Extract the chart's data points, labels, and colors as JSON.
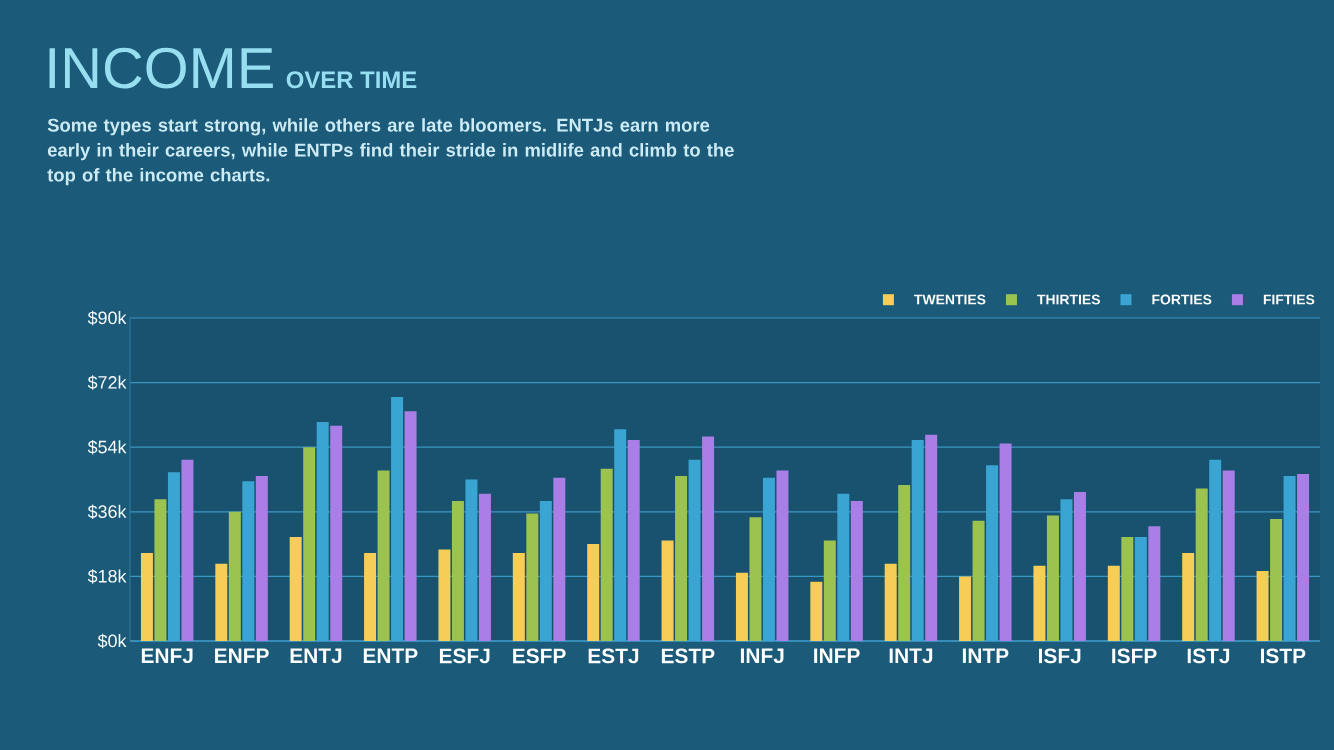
{
  "chart_data": {
    "type": "bar",
    "title": "INCOME",
    "subtitle": "OVER TIME",
    "annotations": [
      "Some types start strong, while others are late bloomers. ENTJs earn more early in their careers, while ENTPs find their stride in midlife and climb to the top of the income charts."
    ],
    "categories": [
      "ENFJ",
      "ENFP",
      "ENTJ",
      "ENTP",
      "ESFJ",
      "ESFP",
      "ESTJ",
      "ESTP",
      "INFJ",
      "INFP",
      "INTJ",
      "INTP",
      "ISFJ",
      "ISFP",
      "ISTJ",
      "ISTP"
    ],
    "series": [
      {
        "name": "TWENTIES",
        "color": "#f5cd57",
        "values": [
          24.5,
          21.5,
          29,
          24.5,
          25.5,
          24.5,
          27,
          28,
          19,
          16.5,
          21.5,
          18,
          21,
          21,
          24.5,
          19.5
        ]
      },
      {
        "name": "THIRTIES",
        "color": "#9cc34f",
        "values": [
          39.5,
          36,
          54,
          47.5,
          39,
          35.5,
          48,
          46,
          34.5,
          28,
          43.5,
          33.5,
          35,
          29,
          42.5,
          34
        ]
      },
      {
        "name": "FORTIES",
        "color": "#3aa5d3",
        "values": [
          47,
          44.5,
          61,
          68,
          45,
          39,
          59,
          50.5,
          45.5,
          41,
          56,
          49,
          39.5,
          29,
          50.5,
          46
        ]
      },
      {
        "name": "FIFTIES",
        "color": "#a97ee6",
        "values": [
          50.5,
          46,
          60,
          64,
          41,
          45.5,
          56,
          57,
          47.5,
          39,
          57.5,
          55,
          41.5,
          32,
          47.5,
          46.5
        ]
      }
    ],
    "ylim": [
      0,
      90
    ],
    "yticks": [
      {
        "value": 0,
        "label": "$0k"
      },
      {
        "value": 18,
        "label": "$18k"
      },
      {
        "value": 36,
        "label": "$36k"
      },
      {
        "value": 54,
        "label": "$54k"
      },
      {
        "value": 72,
        "label": "$72k"
      },
      {
        "value": 90,
        "label": "$90k"
      }
    ],
    "grid": "y",
    "legend": "top right"
  }
}
